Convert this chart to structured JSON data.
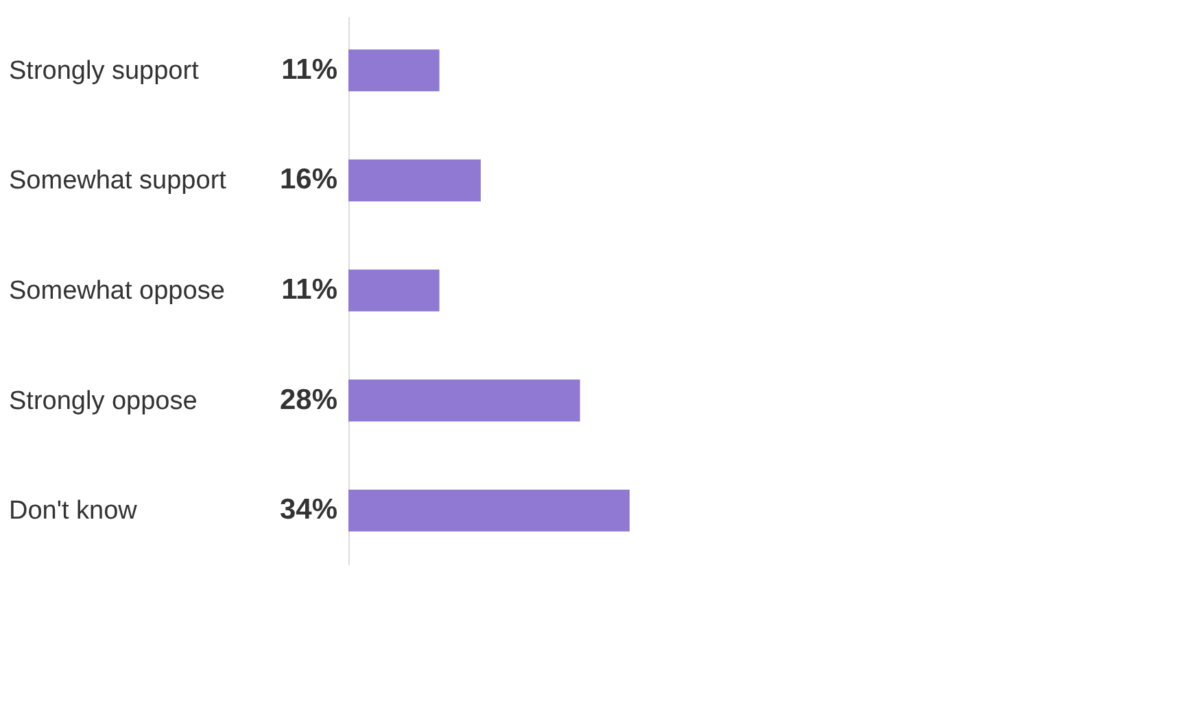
{
  "chart_data": {
    "type": "bar",
    "orientation": "horizontal",
    "categories": [
      "Strongly support",
      "Somewhat support",
      "Somewhat oppose",
      "Strongly oppose",
      "Don't know"
    ],
    "color": "#9079d2",
    "values": [
      11,
      16,
      11,
      28,
      34
    ],
    "value_labels": [
      "11%",
      "16%",
      "11%",
      "28%",
      "34%"
    ],
    "tick_labels": "y"
  }
}
